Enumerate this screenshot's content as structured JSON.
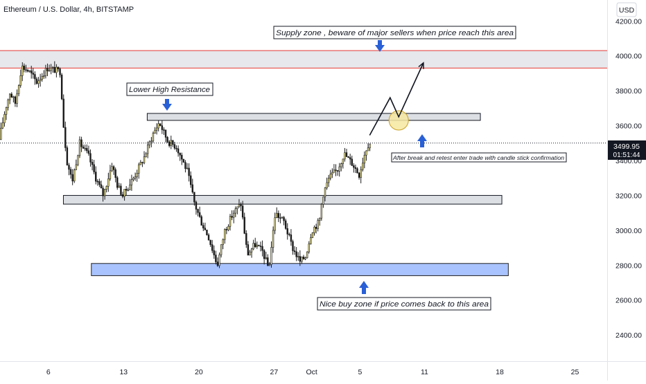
{
  "chart_data": {
    "type": "candlestick",
    "title": "Ethereum / U.S. Dollar, 4h, BITSTAMP",
    "currency_button": "USD",
    "colors": {
      "up_body": "#f0e68c",
      "down_body": "#1a1a1a",
      "wick": "#1a1a1a",
      "resistance_line": "#e53935",
      "supply_zone": "#e6e8eb",
      "gray_zone": "#dcdfe3",
      "buy_zone": "#a9c3ff",
      "buy_zone_border": "#1f1f1f",
      "arrow_blue": "#2a60d6",
      "highlight_circle": "#f7e7a0",
      "axis_text": "#131722"
    },
    "y_axis": {
      "range": [
        2250,
        4320
      ],
      "ticks": [
        "4200.00",
        "4000.00",
        "3800.00",
        "3600.00",
        "3400.00",
        "3200.00",
        "3000.00",
        "2800.00",
        "2600.00",
        "2400.00"
      ],
      "tick_values": [
        4200,
        4000,
        3800,
        3600,
        3400,
        3200,
        3000,
        2800,
        2600,
        2400
      ]
    },
    "x_axis": {
      "ticks": [
        "6",
        "13",
        "20",
        "27",
        "Oct",
        "5",
        "11",
        "18",
        "25"
      ],
      "tick_days": [
        6,
        13,
        20,
        27,
        30.5,
        35,
        41,
        48,
        55
      ],
      "x_domain_days": [
        1.5,
        58
      ]
    },
    "last_price": {
      "value": 3499.95,
      "label": "3499.95",
      "countdown": "01:51:44"
    },
    "zones": [
      {
        "name": "supply-zone",
        "from_day": 1.5,
        "to_day": 58,
        "low": 3930,
        "high": 4030
      },
      {
        "name": "lower-high-resistance-zone",
        "from_day": 15.2,
        "to_day": 46.2,
        "low": 3630,
        "high": 3670
      },
      {
        "name": "support-gray-zone",
        "from_day": 7.4,
        "to_day": 48.2,
        "low": 3150,
        "high": 3200
      },
      {
        "name": "buy-zone",
        "from_day": 10.0,
        "to_day": 48.8,
        "low": 2740,
        "high": 2810
      }
    ],
    "annotations": {
      "supply": "Supply zone , beware of major sellers when price reach this area",
      "lower_high": "Lower High Resistance",
      "break_retest": "After break and retest enter trade with candle stick confirmation",
      "buy_zone": "Nice buy zone if price comes back to this area"
    },
    "projection": [
      {
        "day": 35.9,
        "price": 3545
      },
      {
        "day": 37.8,
        "price": 3760
      },
      {
        "day": 38.6,
        "price": 3650
      },
      {
        "day": 40.9,
        "price": 3960
      }
    ],
    "anchors": [
      {
        "day": 1.5,
        "price": 3520
      },
      {
        "day": 2.1,
        "price": 3700
      },
      {
        "day": 2.5,
        "price": 3790
      },
      {
        "day": 3.0,
        "price": 3730
      },
      {
        "day": 3.6,
        "price": 3940
      },
      {
        "day": 4.3,
        "price": 3910
      },
      {
        "day": 5.0,
        "price": 3850
      },
      {
        "day": 6.0,
        "price": 3930
      },
      {
        "day": 7.2,
        "price": 3910
      },
      {
        "day": 7.5,
        "price": 3600
      },
      {
        "day": 7.8,
        "price": 3400
      },
      {
        "day": 8.3,
        "price": 3280
      },
      {
        "day": 9.0,
        "price": 3500
      },
      {
        "day": 9.8,
        "price": 3430
      },
      {
        "day": 10.5,
        "price": 3300
      },
      {
        "day": 11.2,
        "price": 3200
      },
      {
        "day": 12.0,
        "price": 3380
      },
      {
        "day": 12.5,
        "price": 3260
      },
      {
        "day": 13.0,
        "price": 3200
      },
      {
        "day": 14.0,
        "price": 3300
      },
      {
        "day": 15.0,
        "price": 3420
      },
      {
        "day": 15.8,
        "price": 3550
      },
      {
        "day": 16.4,
        "price": 3620
      },
      {
        "day": 17.2,
        "price": 3510
      },
      {
        "day": 18.0,
        "price": 3480
      },
      {
        "day": 19.0,
        "price": 3340
      },
      {
        "day": 19.7,
        "price": 3150
      },
      {
        "day": 20.3,
        "price": 3050
      },
      {
        "day": 21.0,
        "price": 2960
      },
      {
        "day": 21.8,
        "price": 2800
      },
      {
        "day": 22.5,
        "price": 3000
      },
      {
        "day": 23.3,
        "price": 3100
      },
      {
        "day": 24.0,
        "price": 3150
      },
      {
        "day": 24.6,
        "price": 2860
      },
      {
        "day": 25.3,
        "price": 2920
      },
      {
        "day": 26.0,
        "price": 2880
      },
      {
        "day": 26.6,
        "price": 2780
      },
      {
        "day": 27.2,
        "price": 3100
      },
      {
        "day": 28.0,
        "price": 3050
      },
      {
        "day": 28.8,
        "price": 2900
      },
      {
        "day": 29.5,
        "price": 2820
      },
      {
        "day": 30.0,
        "price": 2850
      },
      {
        "day": 30.6,
        "price": 3000
      },
      {
        "day": 31.3,
        "price": 3050
      },
      {
        "day": 31.6,
        "price": 3200
      },
      {
        "day": 32.2,
        "price": 3300
      },
      {
        "day": 33.0,
        "price": 3350
      },
      {
        "day": 33.6,
        "price": 3440
      },
      {
        "day": 34.4,
        "price": 3380
      },
      {
        "day": 35.0,
        "price": 3320
      },
      {
        "day": 35.6,
        "price": 3460
      },
      {
        "day": 35.9,
        "price": 3500
      }
    ]
  }
}
